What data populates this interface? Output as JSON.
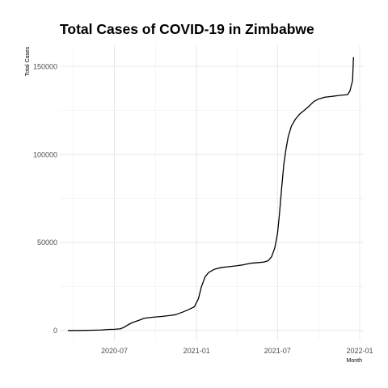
{
  "chart_data": {
    "type": "line",
    "title": "Total Cases of COVID-19 in Zimbabwe",
    "xlabel": "Month",
    "ylabel": "Total Cases",
    "xlim": [
      "2020-03-01",
      "2022-01-10"
    ],
    "ylim": [
      -6000,
      162000
    ],
    "grid": true,
    "x_ticks": [
      {
        "date": "2020-07-01",
        "label": "2020-07"
      },
      {
        "date": "2021-01-01",
        "label": "2021-01"
      },
      {
        "date": "2021-07-01",
        "label": "2021-07"
      },
      {
        "date": "2022-01-01",
        "label": "2022-01"
      }
    ],
    "y_ticks": [
      {
        "value": 0,
        "label": "0"
      },
      {
        "value": 50000,
        "label": "50000"
      },
      {
        "value": 100000,
        "label": "100000"
      },
      {
        "value": 150000,
        "label": "150000"
      }
    ],
    "series": [
      {
        "color": "#000000",
        "points": [
          [
            "2020-03-20",
            0
          ],
          [
            "2020-04-15",
            50
          ],
          [
            "2020-05-15",
            200
          ],
          [
            "2020-06-01",
            300
          ],
          [
            "2020-06-15",
            600
          ],
          [
            "2020-07-01",
            700
          ],
          [
            "2020-07-15",
            1000
          ],
          [
            "2020-07-22",
            1800
          ],
          [
            "2020-08-01",
            3300
          ],
          [
            "2020-08-10",
            4500
          ],
          [
            "2020-08-25",
            5800
          ],
          [
            "2020-09-05",
            6900
          ],
          [
            "2020-09-15",
            7300
          ],
          [
            "2020-10-01",
            7700
          ],
          [
            "2020-10-15",
            8000
          ],
          [
            "2020-11-01",
            8500
          ],
          [
            "2020-11-15",
            9000
          ],
          [
            "2020-12-01",
            10500
          ],
          [
            "2020-12-15",
            12000
          ],
          [
            "2020-12-27",
            13500
          ],
          [
            "2021-01-05",
            18000
          ],
          [
            "2021-01-12",
            25000
          ],
          [
            "2021-01-20",
            30500
          ],
          [
            "2021-01-28",
            33000
          ],
          [
            "2021-02-10",
            34800
          ],
          [
            "2021-02-25",
            35800
          ],
          [
            "2021-03-15",
            36300
          ],
          [
            "2021-04-01",
            36800
          ],
          [
            "2021-04-15",
            37300
          ],
          [
            "2021-05-01",
            38200
          ],
          [
            "2021-05-15",
            38500
          ],
          [
            "2021-06-01",
            38900
          ],
          [
            "2021-06-10",
            39600
          ],
          [
            "2021-06-18",
            42000
          ],
          [
            "2021-06-25",
            47000
          ],
          [
            "2021-07-01",
            55000
          ],
          [
            "2021-07-05",
            65000
          ],
          [
            "2021-07-10",
            80000
          ],
          [
            "2021-07-15",
            94000
          ],
          [
            "2021-07-20",
            103000
          ],
          [
            "2021-07-25",
            110000
          ],
          [
            "2021-08-01",
            116000
          ],
          [
            "2021-08-10",
            120000
          ],
          [
            "2021-08-20",
            123000
          ],
          [
            "2021-09-01",
            125500
          ],
          [
            "2021-09-10",
            127500
          ],
          [
            "2021-09-20",
            130000
          ],
          [
            "2021-10-01",
            131500
          ],
          [
            "2021-10-15",
            132500
          ],
          [
            "2021-11-01",
            133000
          ],
          [
            "2021-11-15",
            133500
          ],
          [
            "2021-12-05",
            134000
          ],
          [
            "2021-12-10",
            136000
          ],
          [
            "2021-12-13",
            139000
          ],
          [
            "2021-12-16",
            142000
          ],
          [
            "2021-12-18",
            155000
          ]
        ]
      }
    ]
  }
}
